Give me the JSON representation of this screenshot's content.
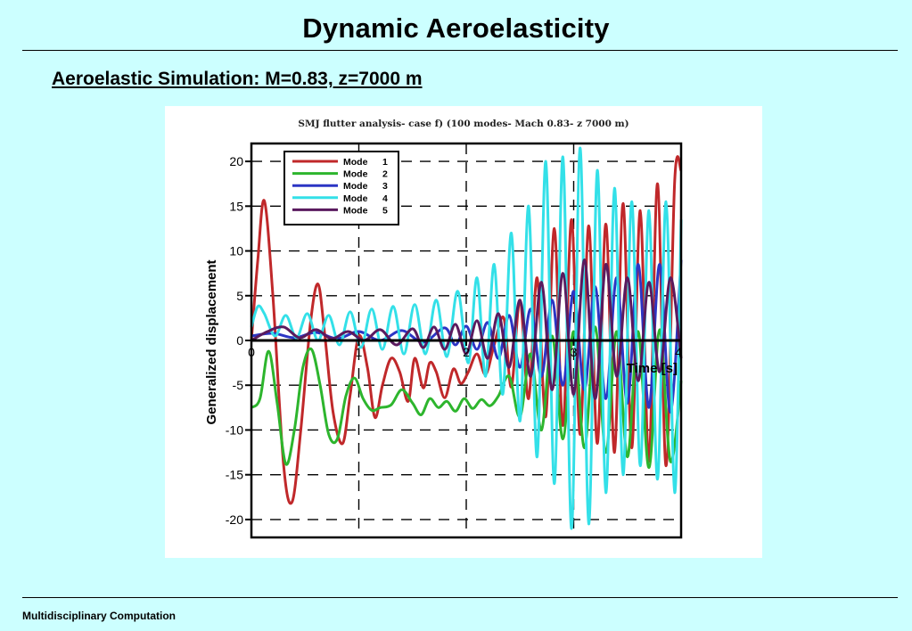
{
  "slide": {
    "title": "Dynamic Aeroelasticity",
    "subtitle": "Aeroelastic Simulation: M=0.83, z=7000 m",
    "footer": "Multidisciplinary Computation"
  },
  "chart_data": {
    "type": "line",
    "title": "SMJ flutter analysis- case f) (100 modes- Mach 0.83- z 7000 m)",
    "xlabel": "Time [s]",
    "ylabel": "Generalized displacement",
    "xlim": [
      0,
      4
    ],
    "ylim": [
      -22,
      22
    ],
    "xticks": [
      0,
      1,
      2,
      3,
      4
    ],
    "yticks": [
      -20,
      -15,
      -10,
      -5,
      0,
      5,
      10,
      15,
      20
    ],
    "grid": true,
    "legend_position": "top-left",
    "series": [
      {
        "name": "Mode 1",
        "color": "#c0282a",
        "x": [
          0,
          0.06,
          0.12,
          0.2,
          0.3,
          0.38,
          0.46,
          0.55,
          0.62,
          0.68,
          0.76,
          0.85,
          0.92,
          1.0,
          1.08,
          1.15,
          1.22,
          1.3,
          1.38,
          1.46,
          1.52,
          1.6,
          1.66,
          1.72,
          1.8,
          1.88,
          1.95,
          2.02,
          2.1,
          2.18,
          2.26,
          2.35,
          2.42,
          2.5,
          2.58,
          2.66,
          2.74,
          2.82,
          2.9,
          2.98,
          3.06,
          3.14,
          3.22,
          3.3,
          3.38,
          3.46,
          3.54,
          3.62,
          3.7,
          3.78,
          3.86,
          3.94,
          4.0
        ],
        "y": [
          0,
          9,
          15.6,
          5,
          -14,
          -18,
          -10,
          2,
          6.3,
          1,
          -8,
          -11.5,
          -6,
          0.5,
          -3,
          -8.6,
          -5,
          -2,
          -3.5,
          -6.8,
          -2,
          -5.3,
          -2.5,
          -3.5,
          -6.4,
          -3.2,
          -4.8,
          -3.5,
          -1.5,
          -3.8,
          -0.5,
          2.5,
          -5.2,
          4.5,
          -6.5,
          7.0,
          -8.5,
          12.5,
          -9.5,
          13.5,
          -10.5,
          12.8,
          -11.5,
          13.0,
          -12.5,
          15.3,
          -12.0,
          14.5,
          -13.5,
          17.5,
          -14.0,
          17.8,
          19
        ]
      },
      {
        "name": "Mode 2",
        "color": "#2db52d",
        "x": [
          0,
          0.08,
          0.16,
          0.24,
          0.32,
          0.4,
          0.48,
          0.56,
          0.64,
          0.72,
          0.8,
          0.88,
          0.96,
          1.04,
          1.12,
          1.2,
          1.3,
          1.4,
          1.5,
          1.58,
          1.66,
          1.74,
          1.82,
          1.9,
          1.98,
          2.06,
          2.14,
          2.22,
          2.3,
          2.4,
          2.5,
          2.6,
          2.7,
          2.8,
          2.9,
          3.0,
          3.1,
          3.2,
          3.3,
          3.4,
          3.5,
          3.6,
          3.7,
          3.8,
          3.9,
          4.0
        ],
        "y": [
          -7.5,
          -6.5,
          -1.2,
          -7,
          -13.8,
          -10,
          -3,
          -1.0,
          -5,
          -10.5,
          -11,
          -6.2,
          -4.2,
          -6.5,
          -7.8,
          -7.5,
          -7.2,
          -5.5,
          -7.0,
          -8.3,
          -6.5,
          -7.5,
          -6.8,
          -7.9,
          -6.5,
          -7.6,
          -6.6,
          -7.3,
          -6.2,
          -4.0,
          -8.5,
          -1.5,
          -10.0,
          0.5,
          -11.0,
          1.0,
          -12.0,
          1.5,
          -12.5,
          1.0,
          -13.0,
          1.0,
          -14.2,
          1.2,
          -13.5,
          -4.5
        ]
      },
      {
        "name": "Mode 3",
        "color": "#2c35c4",
        "x": [
          0,
          0.2,
          0.4,
          0.6,
          0.8,
          1.0,
          1.2,
          1.4,
          1.6,
          1.8,
          1.9,
          2.0,
          2.1,
          2.2,
          2.3,
          2.4,
          2.5,
          2.6,
          2.7,
          2.8,
          2.9,
          3.0,
          3.1,
          3.2,
          3.3,
          3.4,
          3.5,
          3.6,
          3.7,
          3.8,
          3.9,
          4.0
        ],
        "y": [
          0.5,
          0.8,
          0.3,
          0.9,
          0.2,
          1.0,
          0.0,
          1.1,
          -0.2,
          1.4,
          -0.5,
          1.6,
          -1.0,
          2.0,
          -2.0,
          2.8,
          -3.0,
          3.5,
          -4.0,
          4.5,
          -5.0,
          5.5,
          -5.5,
          6.0,
          -6.5,
          7.0,
          -7.0,
          8.5,
          -7.5,
          8.5,
          -8.0,
          9.0
        ]
      },
      {
        "name": "Mode 4",
        "color": "#33e0e8",
        "x": [
          0,
          0.06,
          0.12,
          0.22,
          0.32,
          0.42,
          0.52,
          0.62,
          0.72,
          0.82,
          0.92,
          1.02,
          1.12,
          1.22,
          1.32,
          1.42,
          1.52,
          1.62,
          1.72,
          1.82,
          1.92,
          2.02,
          2.1,
          2.18,
          2.26,
          2.34,
          2.42,
          2.5,
          2.58,
          2.66,
          2.74,
          2.82,
          2.9,
          2.98,
          3.06,
          3.14,
          3.22,
          3.3,
          3.38,
          3.46,
          3.54,
          3.62,
          3.7,
          3.78,
          3.86,
          3.94,
          4.0
        ],
        "y": [
          1.5,
          3.8,
          3.0,
          0.5,
          2.8,
          0.3,
          3.0,
          0.0,
          2.8,
          -0.5,
          3.2,
          -0.8,
          3.5,
          -1.0,
          3.8,
          -1.5,
          4.0,
          -1.5,
          4.5,
          -1.8,
          5.5,
          -2.5,
          7.0,
          -4.0,
          8.5,
          -6.0,
          12.0,
          -9.0,
          15.0,
          -13.0,
          20.0,
          -16.0,
          20.5,
          -21.0,
          21.5,
          -20.5,
          19.0,
          -17.0,
          17.0,
          -15.0,
          15.5,
          -14.0,
          14.5,
          -15.5,
          15.5,
          -17.0,
          13.5
        ]
      },
      {
        "name": "Mode 5",
        "color": "#5a1a5e",
        "x": [
          0,
          0.15,
          0.3,
          0.45,
          0.6,
          0.75,
          0.9,
          1.05,
          1.2,
          1.35,
          1.5,
          1.6,
          1.7,
          1.8,
          1.9,
          2.0,
          2.1,
          2.2,
          2.3,
          2.4,
          2.5,
          2.6,
          2.7,
          2.8,
          2.9,
          3.0,
          3.1,
          3.2,
          3.3,
          3.4,
          3.5,
          3.6,
          3.7,
          3.8,
          3.9,
          4.0
        ],
        "y": [
          0.0,
          1.0,
          1.5,
          0.3,
          1.2,
          0.2,
          1.0,
          0.0,
          1.2,
          -0.5,
          1.3,
          -0.8,
          1.5,
          -1.0,
          1.8,
          -1.5,
          2.2,
          -2.0,
          3.0,
          -3.0,
          4.5,
          -4.0,
          6.5,
          -5.5,
          7.5,
          -6.0,
          9.0,
          -6.5,
          8.5,
          -4.0,
          7.0,
          -4.5,
          6.5,
          -3.5,
          7.0,
          -2.0
        ]
      }
    ]
  }
}
